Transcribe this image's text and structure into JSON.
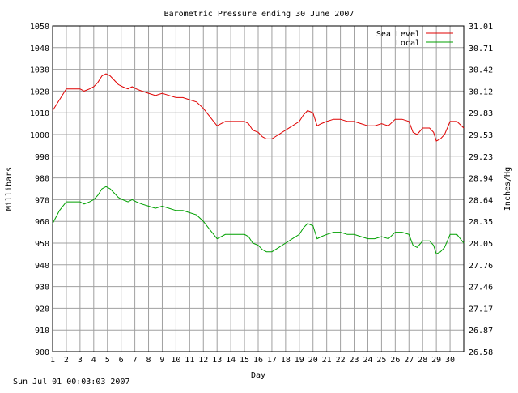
{
  "chart_data": {
    "type": "line",
    "title": "Barometric Pressure ending 30 June 2007",
    "xlabel": "Day",
    "ylabel": "Millibars",
    "y2label": "Inches/Hg",
    "footer": "Sun Jul 01 00:03:03 2007",
    "grid": true,
    "legend_position": "top-right",
    "xlim": [
      1,
      31
    ],
    "ylim": [
      900,
      1050
    ],
    "x_ticks": [
      "1",
      "2",
      "3",
      "4",
      "5",
      "6",
      "7",
      "8",
      "9",
      "10",
      "11",
      "12",
      "13",
      "14",
      "15",
      "16",
      "17",
      "18",
      "19",
      "20",
      "21",
      "22",
      "23",
      "24",
      "25",
      "26",
      "27",
      "28",
      "29",
      "30"
    ],
    "y_ticks": [
      "900",
      "910",
      "920",
      "930",
      "940",
      "950",
      "960",
      "970",
      "980",
      "990",
      "1000",
      "1010",
      "1020",
      "1030",
      "1040",
      "1050"
    ],
    "y2_ticks": [
      "26.58",
      "26.87",
      "27.17",
      "27.46",
      "27.76",
      "28.05",
      "28.35",
      "28.64",
      "28.94",
      "29.23",
      "29.53",
      "29.83",
      "30.12",
      "30.42",
      "30.71",
      "31.01"
    ],
    "colors": {
      "grid": "#a0a0a0",
      "axis": "#000000"
    },
    "series": [
      {
        "name": "Sea Level",
        "color": "#e00000",
        "points": [
          [
            1,
            1011
          ],
          [
            1.5,
            1016
          ],
          [
            2,
            1021
          ],
          [
            2.5,
            1021
          ],
          [
            3,
            1021
          ],
          [
            3.3,
            1020
          ],
          [
            3.7,
            1021
          ],
          [
            4,
            1022
          ],
          [
            4.3,
            1024
          ],
          [
            4.6,
            1027
          ],
          [
            4.9,
            1028
          ],
          [
            5.2,
            1027
          ],
          [
            5.5,
            1025
          ],
          [
            5.8,
            1023
          ],
          [
            6.1,
            1022
          ],
          [
            6.5,
            1021
          ],
          [
            6.8,
            1022
          ],
          [
            7.1,
            1021
          ],
          [
            7.5,
            1020
          ],
          [
            8,
            1019
          ],
          [
            8.5,
            1018
          ],
          [
            9,
            1019
          ],
          [
            9.5,
            1018
          ],
          [
            10,
            1017
          ],
          [
            10.5,
            1017
          ],
          [
            11,
            1016
          ],
          [
            11.5,
            1015
          ],
          [
            12,
            1012
          ],
          [
            12.5,
            1008
          ],
          [
            13,
            1004
          ],
          [
            13.3,
            1005
          ],
          [
            13.6,
            1006
          ],
          [
            14,
            1006
          ],
          [
            14.5,
            1006
          ],
          [
            15,
            1006
          ],
          [
            15.3,
            1005
          ],
          [
            15.6,
            1002
          ],
          [
            16,
            1001
          ],
          [
            16.3,
            999
          ],
          [
            16.6,
            998
          ],
          [
            17,
            998
          ],
          [
            17.5,
            1000
          ],
          [
            18,
            1002
          ],
          [
            18.5,
            1004
          ],
          [
            19,
            1006
          ],
          [
            19.3,
            1009
          ],
          [
            19.6,
            1011
          ],
          [
            20,
            1010
          ],
          [
            20.3,
            1004
          ],
          [
            20.6,
            1005
          ],
          [
            21,
            1006
          ],
          [
            21.5,
            1007
          ],
          [
            22,
            1007
          ],
          [
            22.5,
            1006
          ],
          [
            23,
            1006
          ],
          [
            23.5,
            1005
          ],
          [
            24,
            1004
          ],
          [
            24.5,
            1004
          ],
          [
            25,
            1005
          ],
          [
            25.5,
            1004
          ],
          [
            26,
            1007
          ],
          [
            26.5,
            1007
          ],
          [
            27,
            1006
          ],
          [
            27.3,
            1001
          ],
          [
            27.6,
            1000
          ],
          [
            28,
            1003
          ],
          [
            28.5,
            1003
          ],
          [
            28.8,
            1001
          ],
          [
            29,
            997
          ],
          [
            29.3,
            998
          ],
          [
            29.6,
            1000
          ],
          [
            30,
            1006
          ],
          [
            30.5,
            1006
          ],
          [
            31,
            1003
          ]
        ]
      },
      {
        "name": "Local",
        "color": "#00a000",
        "points": [
          [
            1,
            959
          ],
          [
            1.5,
            965
          ],
          [
            2,
            969
          ],
          [
            2.5,
            969
          ],
          [
            3,
            969
          ],
          [
            3.3,
            968
          ],
          [
            3.7,
            969
          ],
          [
            4,
            970
          ],
          [
            4.3,
            972
          ],
          [
            4.6,
            975
          ],
          [
            4.9,
            976
          ],
          [
            5.2,
            975
          ],
          [
            5.5,
            973
          ],
          [
            5.8,
            971
          ],
          [
            6.1,
            970
          ],
          [
            6.5,
            969
          ],
          [
            6.8,
            970
          ],
          [
            7.1,
            969
          ],
          [
            7.5,
            968
          ],
          [
            8,
            967
          ],
          [
            8.5,
            966
          ],
          [
            9,
            967
          ],
          [
            9.5,
            966
          ],
          [
            10,
            965
          ],
          [
            10.5,
            965
          ],
          [
            11,
            964
          ],
          [
            11.5,
            963
          ],
          [
            12,
            960
          ],
          [
            12.5,
            956
          ],
          [
            13,
            952
          ],
          [
            13.3,
            953
          ],
          [
            13.6,
            954
          ],
          [
            14,
            954
          ],
          [
            14.5,
            954
          ],
          [
            15,
            954
          ],
          [
            15.3,
            953
          ],
          [
            15.6,
            950
          ],
          [
            16,
            949
          ],
          [
            16.3,
            947
          ],
          [
            16.6,
            946
          ],
          [
            17,
            946
          ],
          [
            17.5,
            948
          ],
          [
            18,
            950
          ],
          [
            18.5,
            952
          ],
          [
            19,
            954
          ],
          [
            19.3,
            957
          ],
          [
            19.6,
            959
          ],
          [
            20,
            958
          ],
          [
            20.3,
            952
          ],
          [
            20.6,
            953
          ],
          [
            21,
            954
          ],
          [
            21.5,
            955
          ],
          [
            22,
            955
          ],
          [
            22.5,
            954
          ],
          [
            23,
            954
          ],
          [
            23.5,
            953
          ],
          [
            24,
            952
          ],
          [
            24.5,
            952
          ],
          [
            25,
            953
          ],
          [
            25.5,
            952
          ],
          [
            26,
            955
          ],
          [
            26.5,
            955
          ],
          [
            27,
            954
          ],
          [
            27.3,
            949
          ],
          [
            27.6,
            948
          ],
          [
            28,
            951
          ],
          [
            28.5,
            951
          ],
          [
            28.8,
            949
          ],
          [
            29,
            945
          ],
          [
            29.3,
            946
          ],
          [
            29.6,
            948
          ],
          [
            30,
            954
          ],
          [
            30.5,
            954
          ],
          [
            31,
            950
          ]
        ]
      }
    ]
  }
}
